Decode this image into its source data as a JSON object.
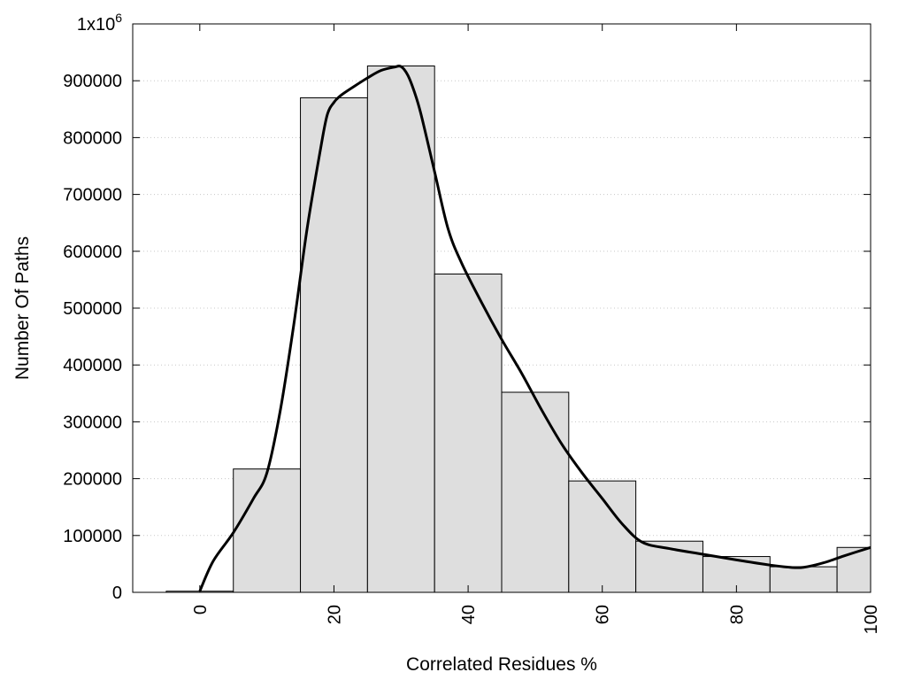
{
  "chart_data": {
    "type": "bar",
    "title": "",
    "xlabel": "Correlated Residues %",
    "ylabel": "Number Of Paths",
    "xlim": [
      -10,
      100
    ],
    "ylim": [
      0,
      1000000
    ],
    "x_ticks": [
      0,
      20,
      40,
      60,
      80,
      100
    ],
    "x_tick_labels": [
      "0",
      "20",
      "40",
      "60",
      "80",
      "100"
    ],
    "y_ticks": [
      0,
      100000,
      200000,
      300000,
      400000,
      500000,
      600000,
      700000,
      800000,
      900000
    ],
    "y_tick_labels": [
      "0",
      "100000",
      "200000",
      "300000",
      "400000",
      "500000",
      "600000",
      "700000",
      "800000",
      "900000"
    ],
    "y_top_label_base": "1x10",
    "y_top_label_exp": "6",
    "grid": "horizontal dotted",
    "bar_fill": "#dedede",
    "bar_stroke": "#000000",
    "line_color": "#000000",
    "bars": [
      {
        "x": 0,
        "value": 2000
      },
      {
        "x": 10,
        "value": 217000
      },
      {
        "x": 20,
        "value": 870000
      },
      {
        "x": 30,
        "value": 926000
      },
      {
        "x": 40,
        "value": 560000
      },
      {
        "x": 50,
        "value": 352000
      },
      {
        "x": 60,
        "value": 196000
      },
      {
        "x": 70,
        "value": 90000
      },
      {
        "x": 80,
        "value": 63000
      },
      {
        "x": 90,
        "value": 45000
      },
      {
        "x": 100,
        "value": 79000
      }
    ],
    "bar_width": 10,
    "curve": [
      [
        0,
        2000
      ],
      [
        2,
        55000
      ],
      [
        5,
        105000
      ],
      [
        8,
        165000
      ],
      [
        10,
        210000
      ],
      [
        12,
        320000
      ],
      [
        14,
        470000
      ],
      [
        16,
        640000
      ],
      [
        18,
        780000
      ],
      [
        19,
        840000
      ],
      [
        20,
        862000
      ],
      [
        21,
        874000
      ],
      [
        23,
        890000
      ],
      [
        25,
        905000
      ],
      [
        27,
        918000
      ],
      [
        29,
        924000
      ],
      [
        30,
        925000
      ],
      [
        31,
        910000
      ],
      [
        32,
        880000
      ],
      [
        33,
        840000
      ],
      [
        35,
        740000
      ],
      [
        37,
        640000
      ],
      [
        39,
        580000
      ],
      [
        42,
        510000
      ],
      [
        45,
        445000
      ],
      [
        48,
        385000
      ],
      [
        51,
        320000
      ],
      [
        54,
        260000
      ],
      [
        57,
        210000
      ],
      [
        60,
        165000
      ],
      [
        63,
        120000
      ],
      [
        66,
        88000
      ],
      [
        70,
        77000
      ],
      [
        75,
        67000
      ],
      [
        80,
        57000
      ],
      [
        85,
        48000
      ],
      [
        88,
        44000
      ],
      [
        90,
        44000
      ],
      [
        93,
        52000
      ],
      [
        96,
        64000
      ],
      [
        100,
        79000
      ]
    ]
  }
}
